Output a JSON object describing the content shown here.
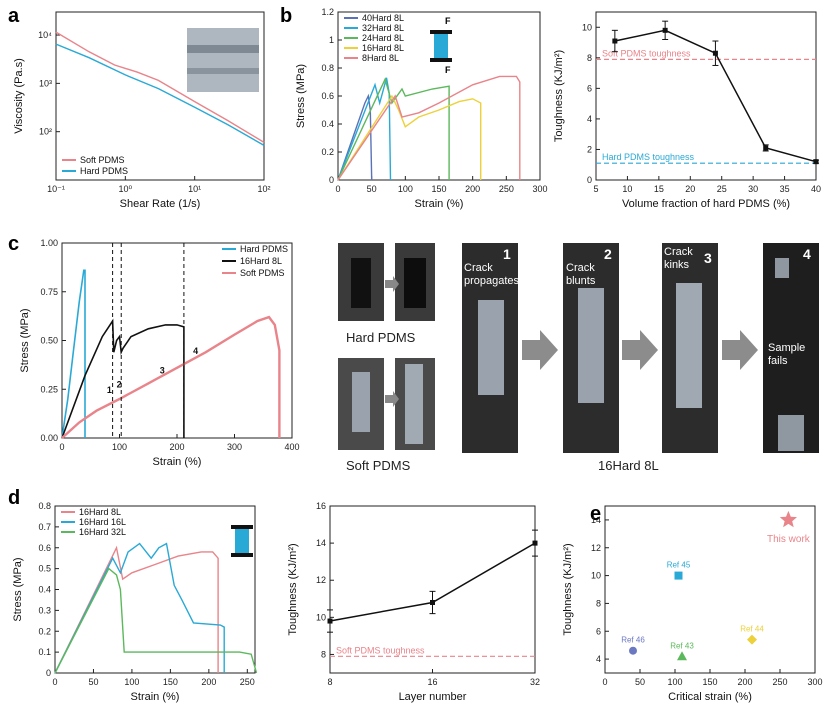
{
  "panels": {
    "a": "a",
    "b": "b",
    "c": "c",
    "d": "d",
    "e": "e"
  },
  "scale_bar_marks": [
    "F",
    "F"
  ],
  "photos": {
    "hard_label": "Hard PDMS",
    "soft_label": "Soft PDMS",
    "sequence_label": "16Hard  8L",
    "steps": [
      {
        "num": "1",
        "text": "Crack propagates"
      },
      {
        "num": "2",
        "text": "Crack blunts"
      },
      {
        "num": "3",
        "text": "Crack kinks"
      },
      {
        "num": "4",
        "text": "Sample fails"
      }
    ],
    "colors": {
      "hard": "#29a9d6",
      "soft": "#e8848a"
    }
  },
  "chart_data": [
    {
      "id": "a",
      "type": "line",
      "xscale": "log",
      "yscale": "log",
      "xlabel": "Shear Rate (1/s)",
      "ylabel": "Viscosity (Pa.s)",
      "xlim": [
        0.1,
        100
      ],
      "ylim": [
        10,
        30000
      ],
      "xticks": [
        "10⁻¹",
        "10⁰",
        "10¹",
        "10²"
      ],
      "yticks": [
        "10²",
        "10³",
        "10⁴"
      ],
      "legend": "bottom-left",
      "series": [
        {
          "name": "Soft PDMS",
          "color": "#e8848a",
          "x": [
            0.1,
            0.3,
            0.7,
            1.5,
            3,
            10,
            30,
            100
          ],
          "y": [
            11500,
            4500,
            2400,
            1700,
            1150,
            420,
            170,
            60
          ]
        },
        {
          "name": "Hard PDMS",
          "color": "#29a9d6",
          "x": [
            0.1,
            0.3,
            1,
            3,
            10,
            30,
            100
          ],
          "y": [
            6500,
            3400,
            1500,
            780,
            320,
            140,
            52
          ]
        }
      ]
    },
    {
      "id": "b1",
      "type": "line",
      "xlabel": "Strain (%)",
      "ylabel": "Stress (MPa)",
      "xlim": [
        0,
        300
      ],
      "ylim": [
        0,
        1.2
      ],
      "xticks": [
        0,
        50,
        100,
        150,
        200,
        250,
        300
      ],
      "yticks": [
        0.0,
        0.2,
        0.4,
        0.6,
        0.8,
        1.0,
        1.2
      ],
      "legend": "top-left",
      "series": [
        {
          "name": "40Hard 8L",
          "color": "#5b72b8",
          "x": [
            0,
            40,
            45,
            48,
            50
          ],
          "y": [
            0,
            0.55,
            0.6,
            0.5,
            0
          ]
        },
        {
          "name": "32Hard 8L",
          "color": "#29a9d6",
          "x": [
            0,
            55,
            62,
            66,
            72,
            76,
            78
          ],
          "y": [
            0,
            0.68,
            0.55,
            0.62,
            0.73,
            0.62,
            0
          ]
        },
        {
          "name": "24Hard 8L",
          "color": "#5cb85c",
          "x": [
            0,
            70,
            80,
            95,
            100,
            140,
            165,
            165
          ],
          "y": [
            0,
            0.72,
            0.55,
            0.65,
            0.6,
            0.65,
            0.67,
            0
          ]
        },
        {
          "name": "16Hard 8L",
          "color": "#ecd13a",
          "x": [
            0,
            80,
            90,
            100,
            120,
            150,
            180,
            200,
            212,
            212
          ],
          "y": [
            0,
            0.6,
            0.5,
            0.38,
            0.45,
            0.5,
            0.56,
            0.58,
            0.55,
            0
          ]
        },
        {
          "name": "8Hard 8L",
          "color": "#e8848a",
          "x": [
            0,
            85,
            95,
            120,
            150,
            200,
            240,
            265,
            270,
            270
          ],
          "y": [
            0,
            0.6,
            0.45,
            0.48,
            0.55,
            0.68,
            0.74,
            0.74,
            0.7,
            0
          ]
        }
      ]
    },
    {
      "id": "b2",
      "type": "line",
      "xlabel": "Volume fraction of hard PDMS (%)",
      "ylabel": "Toughness (KJ/m²)",
      "xlim": [
        5,
        40
      ],
      "ylim": [
        0,
        11
      ],
      "xticks": [
        5,
        10,
        15,
        20,
        25,
        30,
        35,
        40
      ],
      "yticks": [
        0,
        2,
        4,
        6,
        8,
        10
      ],
      "x": [
        8,
        16,
        24,
        32,
        40
      ],
      "y": [
        9.1,
        9.8,
        8.3,
        2.1,
        1.2
      ],
      "err": [
        0.7,
        0.6,
        0.8,
        0.2,
        0.1
      ],
      "annotations": [
        {
          "text": "Soft PDMS toughness",
          "y": 7.9,
          "color": "#e8848a"
        },
        {
          "text": "Hard PDMS toughness",
          "y": 1.1,
          "color": "#29a9d6"
        }
      ]
    },
    {
      "id": "c",
      "type": "line",
      "xlabel": "Strain (%)",
      "ylabel": "Stress (MPa)",
      "xlim": [
        0,
        400
      ],
      "ylim": [
        0,
        1.0
      ],
      "xticks": [
        0,
        100,
        200,
        300,
        400
      ],
      "yticks": [
        "0.00",
        "0.25",
        "0.50",
        "0.75",
        "1.00"
      ],
      "legend": "top-right",
      "markers": [
        "1",
        "2",
        "3",
        "4"
      ],
      "series": [
        {
          "name": "Hard PDMS",
          "color": "#29a9d6",
          "x": [
            0,
            10,
            20,
            30,
            38,
            40,
            40
          ],
          "y": [
            0,
            0.2,
            0.45,
            0.7,
            0.86,
            0.86,
            0
          ]
        },
        {
          "name": "16Hard 8L",
          "color": "#111111",
          "x": [
            0,
            40,
            70,
            88,
            90,
            95,
            100,
            103,
            106,
            120,
            150,
            180,
            200,
            212,
            212
          ],
          "y": [
            0,
            0.32,
            0.52,
            0.6,
            0.44,
            0.5,
            0.52,
            0.44,
            0.46,
            0.52,
            0.56,
            0.58,
            0.58,
            0.57,
            0
          ]
        },
        {
          "name": "Soft PDMS",
          "color": "#e8848a",
          "x": [
            0,
            30,
            60,
            100,
            150,
            200,
            250,
            300,
            340,
            360,
            370,
            378,
            378
          ],
          "y": [
            0,
            0.08,
            0.14,
            0.2,
            0.28,
            0.36,
            0.44,
            0.53,
            0.6,
            0.62,
            0.58,
            0.45,
            0
          ]
        }
      ]
    },
    {
      "id": "d1",
      "type": "line",
      "xlabel": "Strain (%)",
      "ylabel": "Stress (MPa)",
      "xlim": [
        0,
        260
      ],
      "ylim": [
        0,
        0.8
      ],
      "xticks": [
        0,
        50,
        100,
        150,
        200,
        250
      ],
      "yticks": [
        0.0,
        0.1,
        0.2,
        0.3,
        0.4,
        0.5,
        0.6,
        0.7,
        0.8
      ],
      "legend": "top-left",
      "series": [
        {
          "name": "16Hard 8L",
          "color": "#e8848a",
          "x": [
            0,
            80,
            88,
            100,
            130,
            160,
            190,
            205,
            212,
            212
          ],
          "y": [
            0,
            0.6,
            0.45,
            0.48,
            0.52,
            0.56,
            0.58,
            0.58,
            0.55,
            0
          ]
        },
        {
          "name": "16Hard 16L",
          "color": "#29a9d6",
          "x": [
            0,
            75,
            85,
            95,
            110,
            125,
            135,
            145,
            155,
            165,
            180,
            215,
            220,
            220
          ],
          "y": [
            0,
            0.55,
            0.48,
            0.58,
            0.62,
            0.55,
            0.6,
            0.62,
            0.42,
            0.35,
            0.24,
            0.23,
            0.22,
            0
          ]
        },
        {
          "name": "16Hard 32L",
          "color": "#5cb85c",
          "x": [
            0,
            70,
            80,
            85,
            90,
            120,
            200,
            240,
            255,
            262
          ],
          "y": [
            0,
            0.5,
            0.47,
            0.4,
            0.1,
            0.1,
            0.1,
            0.1,
            0.09,
            0
          ]
        }
      ]
    },
    {
      "id": "d2",
      "type": "line",
      "xlabel": "Layer number",
      "ylabel": "Toughness (KJ/m²)",
      "xlim": [
        8,
        32
      ],
      "xscale": "log2",
      "ylim": [
        7,
        16
      ],
      "xticks": [
        8,
        16,
        32
      ],
      "yticks": [
        8,
        10,
        12,
        14,
        16
      ],
      "x": [
        8,
        16,
        32
      ],
      "y": [
        9.8,
        10.8,
        14.0
      ],
      "err": [
        0.6,
        0.6,
        0.7
      ],
      "annotations": [
        {
          "text": "Soft PDMS toughness",
          "y": 7.9,
          "color": "#e8848a"
        }
      ]
    },
    {
      "id": "e",
      "type": "scatter",
      "xlabel": "Critical strain (%)",
      "ylabel": "Toughness (KJ/m²)",
      "xlim": [
        0,
        300
      ],
      "ylim": [
        3,
        15
      ],
      "xticks": [
        0,
        50,
        100,
        150,
        200,
        250,
        300
      ],
      "yticks": [
        4,
        6,
        8,
        10,
        12,
        14
      ],
      "points": [
        {
          "label": "Ref 46",
          "x": 40,
          "y": 4.6,
          "color": "#6b78c2",
          "shape": "circle"
        },
        {
          "label": "Ref 43",
          "x": 110,
          "y": 4.2,
          "color": "#5cb85c",
          "shape": "triangle"
        },
        {
          "label": "Ref 45",
          "x": 105,
          "y": 10.0,
          "color": "#29a9d6",
          "shape": "square"
        },
        {
          "label": "Ref 44",
          "x": 210,
          "y": 5.4,
          "color": "#ecd13a",
          "shape": "diamond"
        },
        {
          "label": "This work",
          "x": 262,
          "y": 14.0,
          "color": "#e8848a",
          "shape": "star"
        }
      ]
    }
  ]
}
